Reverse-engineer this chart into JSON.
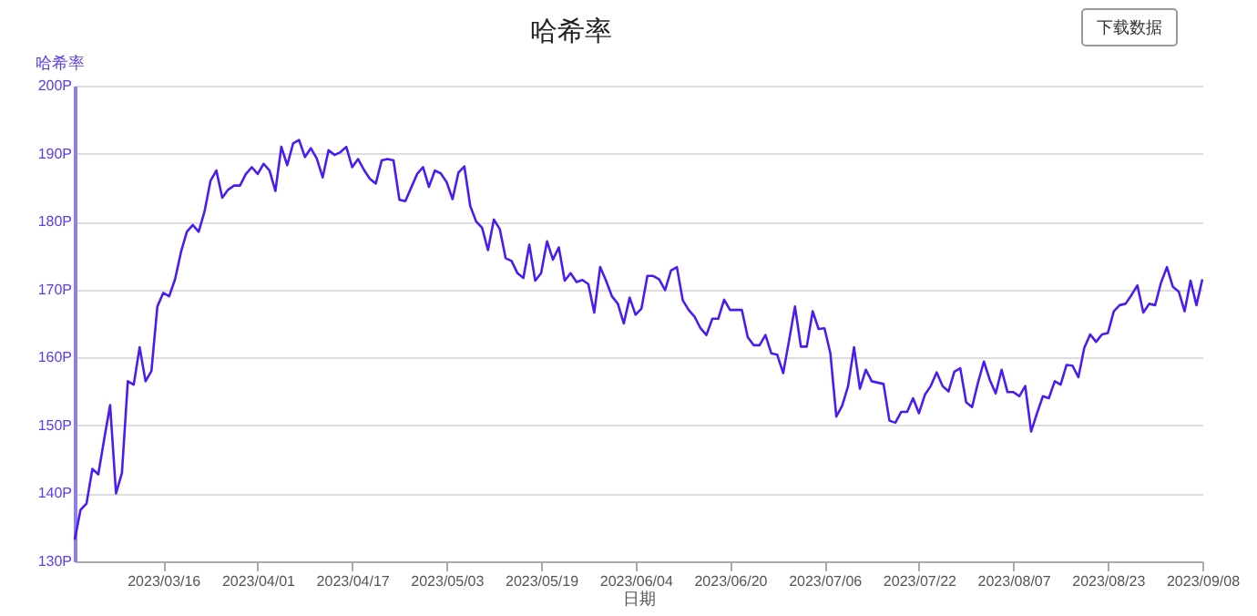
{
  "chart_data": {
    "type": "line",
    "title": "哈希率",
    "ylabel": "哈希率",
    "xlabel": "日期",
    "annotations": [
      "下载数据"
    ],
    "x": [
      "2023-03-01",
      "2023-03-02",
      "2023-03-03",
      "2023-03-04",
      "2023-03-05",
      "2023-03-06",
      "2023-03-07",
      "2023-03-08",
      "2023-03-09",
      "2023-03-10",
      "2023-03-11",
      "2023-03-12",
      "2023-03-13",
      "2023-03-14",
      "2023-03-15",
      "2023-03-16",
      "2023-03-17",
      "2023-03-18",
      "2023-03-19",
      "2023-03-20",
      "2023-03-21",
      "2023-03-22",
      "2023-03-23",
      "2023-03-24",
      "2023-03-25",
      "2023-03-26",
      "2023-03-27",
      "2023-03-28",
      "2023-03-29",
      "2023-03-30",
      "2023-03-31",
      "2023-04-01",
      "2023-04-02",
      "2023-04-03",
      "2023-04-04",
      "2023-04-05",
      "2023-04-06",
      "2023-04-07",
      "2023-04-08",
      "2023-04-09",
      "2023-04-10",
      "2023-04-11",
      "2023-04-12",
      "2023-04-13",
      "2023-04-14",
      "2023-04-15",
      "2023-04-16",
      "2023-04-17",
      "2023-04-18",
      "2023-04-19",
      "2023-04-20",
      "2023-04-21",
      "2023-04-22",
      "2023-04-23",
      "2023-04-24",
      "2023-04-25",
      "2023-04-26",
      "2023-04-27",
      "2023-04-28",
      "2023-04-29",
      "2023-04-30",
      "2023-05-01",
      "2023-05-02",
      "2023-05-03",
      "2023-05-04",
      "2023-05-05",
      "2023-05-06",
      "2023-05-07",
      "2023-05-08",
      "2023-05-09",
      "2023-05-10",
      "2023-05-11",
      "2023-05-12",
      "2023-05-13",
      "2023-05-14",
      "2023-05-15",
      "2023-05-16",
      "2023-05-17",
      "2023-05-18",
      "2023-05-19",
      "2023-05-20",
      "2023-05-21",
      "2023-05-22",
      "2023-05-23",
      "2023-05-24",
      "2023-05-25",
      "2023-05-26",
      "2023-05-27",
      "2023-05-28",
      "2023-05-29",
      "2023-05-30",
      "2023-05-31",
      "2023-06-01",
      "2023-06-02",
      "2023-06-03",
      "2023-06-04",
      "2023-06-05",
      "2023-06-06",
      "2023-06-07",
      "2023-06-08",
      "2023-06-09",
      "2023-06-10",
      "2023-06-11",
      "2023-06-12",
      "2023-06-13",
      "2023-06-14",
      "2023-06-15",
      "2023-06-16",
      "2023-06-17",
      "2023-06-18",
      "2023-06-19",
      "2023-06-20",
      "2023-06-21",
      "2023-06-22",
      "2023-06-23",
      "2023-06-24",
      "2023-06-25",
      "2023-06-26",
      "2023-06-27",
      "2023-06-28",
      "2023-06-29",
      "2023-06-30",
      "2023-07-01",
      "2023-07-02",
      "2023-07-03",
      "2023-07-04",
      "2023-07-05",
      "2023-07-06",
      "2023-07-07",
      "2023-07-08",
      "2023-07-09",
      "2023-07-10",
      "2023-07-11",
      "2023-07-12",
      "2023-07-13",
      "2023-07-14",
      "2023-07-15",
      "2023-07-16",
      "2023-07-17",
      "2023-07-18",
      "2023-07-19",
      "2023-07-20",
      "2023-07-21",
      "2023-07-22",
      "2023-07-23",
      "2023-07-24",
      "2023-07-25",
      "2023-07-26",
      "2023-07-27",
      "2023-07-28",
      "2023-07-29",
      "2023-07-30",
      "2023-07-31",
      "2023-08-01",
      "2023-08-02",
      "2023-08-03",
      "2023-08-04",
      "2023-08-05",
      "2023-08-06",
      "2023-08-07",
      "2023-08-08",
      "2023-08-09",
      "2023-08-10",
      "2023-08-11",
      "2023-08-12",
      "2023-08-13",
      "2023-08-14",
      "2023-08-15",
      "2023-08-16",
      "2023-08-17",
      "2023-08-18",
      "2023-08-19",
      "2023-08-20",
      "2023-08-21",
      "2023-08-22",
      "2023-08-23",
      "2023-08-24",
      "2023-08-25",
      "2023-08-26",
      "2023-08-27",
      "2023-08-28",
      "2023-08-29",
      "2023-08-30",
      "2023-08-31",
      "2023-09-01",
      "2023-09-02",
      "2023-09-03",
      "2023-09-04",
      "2023-09-05",
      "2023-09-06",
      "2023-09-07",
      "2023-09-08"
    ],
    "series": [
      {
        "color": "#4a1cf2",
        "values": [
          133.2,
          137.6,
          138.5,
          143.6,
          142.8,
          148,
          153,
          140,
          143,
          156.5,
          156,
          161.5,
          156.5,
          158,
          167.5,
          169.5,
          169,
          171.5,
          175.5,
          178.5,
          179.5,
          178.5,
          181.5,
          186,
          187.5,
          183.5,
          184.7,
          185.3,
          185.3,
          187,
          188,
          187,
          188.5,
          187.5,
          184.5,
          191,
          188.3,
          191.5,
          192,
          189.5,
          190.8,
          189.3,
          186.5,
          190.5,
          189.8,
          190.2,
          191,
          188,
          189.2,
          187.6,
          186.3,
          185.6,
          189,
          189.2,
          189,
          183.2,
          183,
          185,
          187,
          188,
          185.1,
          187.5,
          187.1,
          185.8,
          183.3,
          187.2,
          188.1,
          182.3,
          180,
          179.1,
          175.8,
          180.3,
          178.9,
          174.6,
          174.2,
          172.4,
          171.7,
          176.6,
          171.3,
          172.4,
          177.1,
          174.4,
          176.2,
          171.3,
          172.4,
          171.1,
          171.4,
          170.8,
          166.6,
          173.3,
          171.3,
          169,
          167.9,
          165,
          168.8,
          166.3,
          167.2,
          172,
          172,
          171.5,
          169.9,
          172.8,
          173.3,
          168.4,
          167,
          166,
          164.3,
          163.3,
          165.7,
          165.7,
          168.5,
          167,
          167,
          167,
          163,
          161.8,
          161.8,
          163.3,
          160.6,
          160.4,
          157.7,
          162.5,
          167.5,
          161.6,
          161.6,
          166.8,
          164.2,
          164.3,
          160.6,
          151.3,
          152.9,
          155.8,
          161.5,
          155.4,
          158.2,
          156.5,
          156.3,
          156.1,
          150.7,
          150.4,
          152,
          152,
          154,
          151.8,
          154.5,
          155.8,
          157.8,
          155.8,
          155,
          157.9,
          158.4,
          153.4,
          152.7,
          156.3,
          159.4,
          156.7,
          154.7,
          158.2,
          154.9,
          154.9,
          154.3,
          155.8,
          149.1,
          151.8,
          154.3,
          154,
          156.5,
          156,
          158.9,
          158.8,
          157.1,
          161.4,
          163.4,
          162.3,
          163.4,
          163.6,
          166.8,
          167.7,
          167.9,
          169.2,
          170.6,
          166.6,
          167.9,
          167.7,
          171,
          173.3,
          170.4,
          169.7,
          166.8,
          171.3,
          167.7,
          171.5
        ]
      }
    ],
    "xlim": [
      "2023-03-01",
      "2023-09-08"
    ],
    "xticks": [
      {
        "value": "2023-03-16",
        "label": "2023/03/16"
      },
      {
        "value": "2023-04-01",
        "label": "2023/04/01"
      },
      {
        "value": "2023-04-17",
        "label": "2023/04/17"
      },
      {
        "value": "2023-05-03",
        "label": "2023/05/03"
      },
      {
        "value": "2023-05-19",
        "label": "2023/05/19"
      },
      {
        "value": "2023-06-04",
        "label": "2023/06/04"
      },
      {
        "value": "2023-06-20",
        "label": "2023/06/20"
      },
      {
        "value": "2023-07-06",
        "label": "2023/07/06"
      },
      {
        "value": "2023-07-22",
        "label": "2023/07/22"
      },
      {
        "value": "2023-08-07",
        "label": "2023/08/07"
      },
      {
        "value": "2023-08-23",
        "label": "2023/08/23"
      },
      {
        "value": "2023-09-08",
        "label": "2023/09/08"
      }
    ],
    "ylim": [
      130,
      200
    ],
    "yticks": [
      {
        "value": 130,
        "label": "130P"
      },
      {
        "value": 140,
        "label": "140P"
      },
      {
        "value": 150,
        "label": "150P"
      },
      {
        "value": 160,
        "label": "160P"
      },
      {
        "value": 170,
        "label": "170P"
      },
      {
        "value": 180,
        "label": "180P"
      },
      {
        "value": 190,
        "label": "190P"
      },
      {
        "value": 200,
        "label": "200P"
      }
    ],
    "grid": "y",
    "marker": "none",
    "line_style": "solid"
  }
}
